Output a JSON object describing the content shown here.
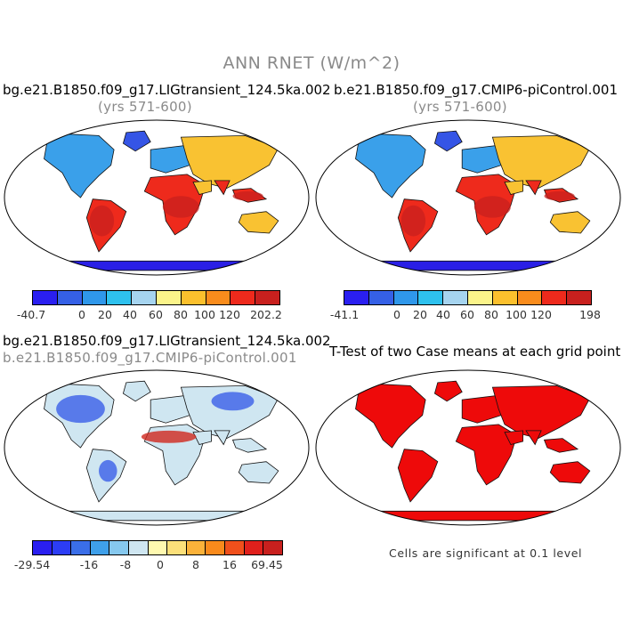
{
  "title": "ANN RNET (W/m^2)",
  "panels": [
    {
      "id": "lig",
      "title": "bg.e21.B1850.f09_g17.LIGtransient_124.5ka.002",
      "subtitle": "(yrs 571-600)",
      "legend_colors": [
        "#2a1ff0",
        "#3560e6",
        "#2f97ea",
        "#2ec1ee",
        "#a6d4ef",
        "#fbf48a",
        "#fbc02d",
        "#f98c1c",
        "#ee2a1c",
        "#c8201e"
      ],
      "ticks": [
        "-40.7",
        "0",
        "20",
        "40",
        "60",
        "80",
        "100",
        "120",
        "202.2"
      ]
    },
    {
      "id": "pictrl",
      "title": "b.e21.B1850.f09_g17.CMIP6-piControl.001",
      "subtitle": "(yrs 571-600)",
      "legend_colors": [
        "#2a1ff0",
        "#3560e6",
        "#2f97ea",
        "#2ec1ee",
        "#a6d4ef",
        "#fbf48a",
        "#fbc02d",
        "#f98c1c",
        "#ee2a1c",
        "#c8201e"
      ],
      "ticks": [
        "-41.1",
        "0",
        "20",
        "40",
        "60",
        "80",
        "100",
        "120",
        "198"
      ]
    },
    {
      "id": "diff",
      "title": "bg.e21.B1850.f09_g17.LIGtransient_124.5ka.002",
      "subtitle": "b.e21.B1850.f09_g17.CMIP6-piControl.001",
      "legend_colors": [
        "#2a1ff0",
        "#2c3df5",
        "#3a6ee8",
        "#3fa0ea",
        "#86c8ee",
        "#cfe6f1",
        "#fff9b0",
        "#fce07a",
        "#fbb23a",
        "#f98a1c",
        "#f0501c",
        "#e0201c",
        "#c8201e"
      ],
      "ticks": [
        "-29.54",
        "-16",
        "-8",
        "0",
        "8",
        "16",
        "69.45"
      ]
    },
    {
      "id": "ttest",
      "title": "T-Test of two Case means at each grid point",
      "note": "Cells are significant at 0.1 level"
    }
  ],
  "map_colors": {
    "ocean": "#ffffff",
    "antarctica": "#2a1fe6",
    "greenland": "#3555e6",
    "high_lat": "#3aa0ea",
    "mid_lat": "#f9c232",
    "tropics": "#ee2a1c",
    "diff_base": "#cfe6f1",
    "diff_blue": "#3a5fe8",
    "diff_red": "#d0281e",
    "ttest": "#ee0a0a"
  }
}
